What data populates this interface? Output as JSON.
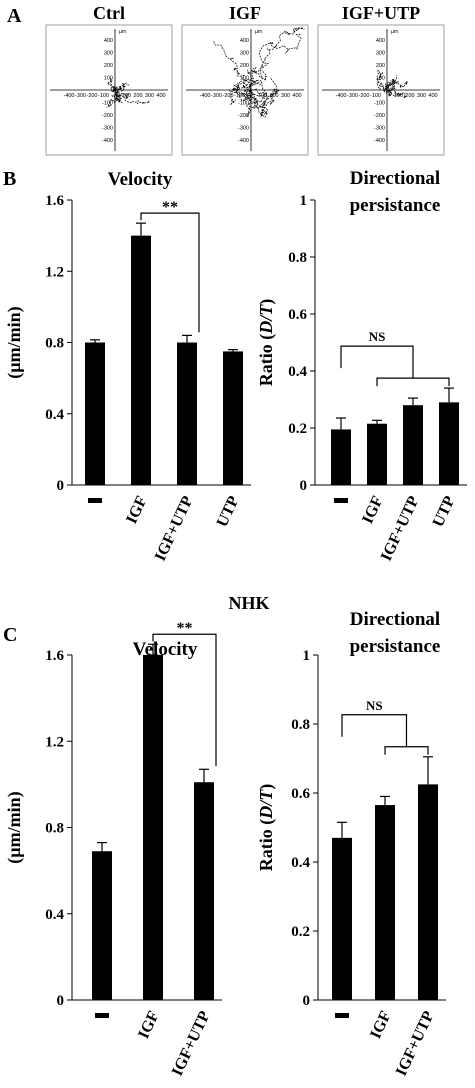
{
  "panels": {
    "A": "A",
    "B": "B",
    "C": "C"
  },
  "cell_line_label": "NHK",
  "tracking": {
    "plots": [
      {
        "title": "Ctrl",
        "seed": 11,
        "n": 7,
        "spread": 1.0
      },
      {
        "title": "IGF",
        "seed": 29,
        "n": 10,
        "spread": 2.2
      },
      {
        "title": "IGF+UTP",
        "seed": 47,
        "n": 8,
        "spread": 0.9
      }
    ],
    "unit": "µm",
    "x_ticks": [
      "-400",
      "-300",
      "-200",
      "-100",
      "0",
      "100",
      "200",
      "300",
      "400"
    ],
    "y_ticks": [
      "400",
      "300",
      "200",
      "100",
      "-100",
      "-200",
      "-300",
      "-400"
    ]
  },
  "chart_data": [
    {
      "id": "B-velocity",
      "type": "bar",
      "title": "Velocity",
      "ylabel": "(µm/min)",
      "categories": [
        "-",
        "IGF",
        "IGF+UTP",
        "UTP"
      ],
      "values": [
        0.8,
        1.4,
        0.8,
        0.75
      ],
      "errors": [
        0.015,
        0.07,
        0.04,
        0.01
      ],
      "ylim": [
        0,
        1.6
      ],
      "yticks": [
        "0",
        "0.4",
        "0.8",
        "1.2",
        "1.6"
      ],
      "annotations": [
        {
          "text": "**",
          "from": 1,
          "to": 2
        }
      ]
    },
    {
      "id": "B-persistence",
      "type": "bar",
      "title_lines": [
        "Directional",
        "persistance"
      ],
      "ylabel_pre": "Ratio (",
      "ylabel_it": "D/T",
      "ylabel_post": ")",
      "categories": [
        "-",
        "IGF",
        "IGF+UTP",
        "UTP"
      ],
      "values": [
        0.195,
        0.215,
        0.28,
        0.29
      ],
      "errors": [
        0.04,
        0.012,
        0.025,
        0.05
      ],
      "ylim": [
        0,
        1
      ],
      "yticks": [
        "0",
        "0.2",
        "0.4",
        "0.6",
        "0.8",
        "1"
      ],
      "annotations": [
        {
          "text": "NS",
          "from": 0,
          "to": [
            1,
            3
          ]
        }
      ]
    },
    {
      "id": "C-velocity",
      "type": "bar",
      "title": "Velocity",
      "ylabel": "(µm/min)",
      "categories": [
        "-",
        "IGF",
        "IGF+UTP"
      ],
      "values": [
        0.69,
        1.6,
        1.01
      ],
      "errors": [
        0.04,
        0.05,
        0.06
      ],
      "ylim": [
        0,
        1.6
      ],
      "yticks": [
        "0",
        "0.4",
        "0.8",
        "1.2",
        "1.6"
      ],
      "annotations": [
        {
          "text": "**",
          "from": 1,
          "to": 2
        }
      ]
    },
    {
      "id": "C-persistence",
      "type": "bar",
      "title_lines": [
        "Directional",
        "persistance"
      ],
      "ylabel_pre": "Ratio (",
      "ylabel_it": "D/T",
      "ylabel_post": ")",
      "categories": [
        "-",
        "IGF",
        "IGF+UTP"
      ],
      "values": [
        0.47,
        0.565,
        0.625
      ],
      "errors": [
        0.045,
        0.025,
        0.08
      ],
      "ylim": [
        0,
        1
      ],
      "yticks": [
        "0",
        "0.2",
        "0.4",
        "0.6",
        "0.8",
        "1"
      ],
      "annotations": [
        {
          "text": "NS",
          "from": 0,
          "to": [
            1,
            2
          ]
        }
      ]
    }
  ]
}
